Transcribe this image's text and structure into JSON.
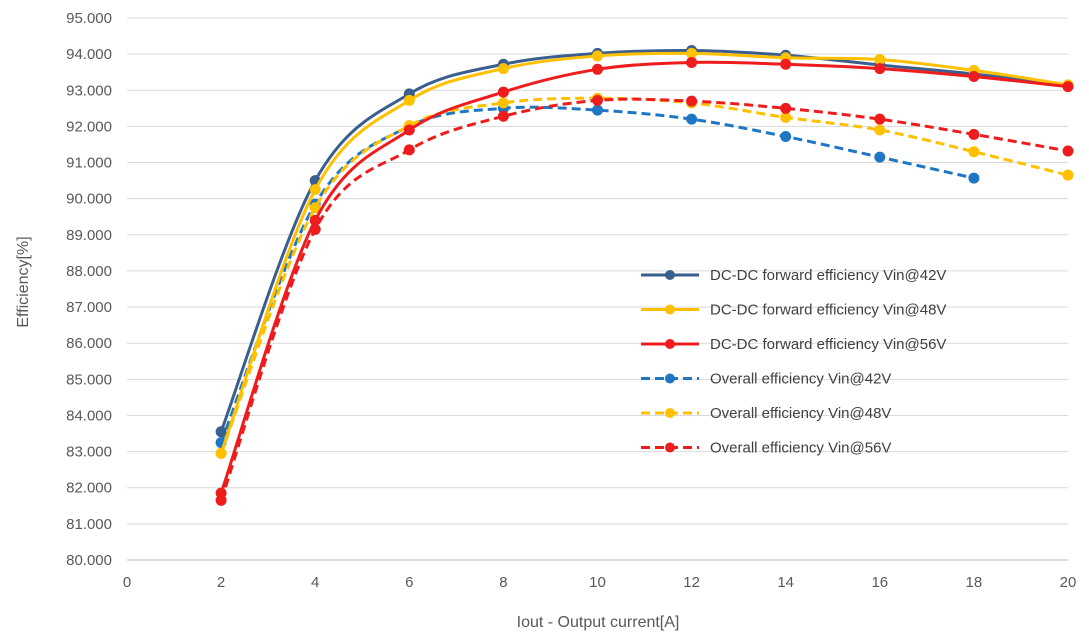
{
  "chart_data": {
    "type": "line",
    "title": "",
    "xlabel": "Iout - Output current[A]",
    "ylabel": "Efficiency[%]",
    "xlim": [
      0,
      20
    ],
    "ylim": [
      80,
      95
    ],
    "x_ticks": [
      "0",
      "2",
      "4",
      "6",
      "8",
      "10",
      "12",
      "14",
      "16",
      "18",
      "20"
    ],
    "y_ticks": [
      "80.000",
      "81.000",
      "82.000",
      "83.000",
      "84.000",
      "85.000",
      "86.000",
      "87.000",
      "88.000",
      "89.000",
      "90.000",
      "91.000",
      "92.000",
      "93.000",
      "94.000",
      "95.000"
    ],
    "grid": true,
    "legend_position": "right",
    "series": [
      {
        "name": "DC-DC forward efficiency Vin@42V",
        "color": "#3a5f8f",
        "dash": false,
        "x": [
          2,
          4,
          6,
          8,
          10,
          12,
          14,
          16,
          18,
          20
        ],
        "y": [
          83.55,
          90.5,
          92.9,
          93.72,
          94.02,
          94.1,
          93.97,
          93.7,
          93.45,
          93.12
        ]
      },
      {
        "name": "DC-DC forward efficiency Vin@48V",
        "color": "#ffc000",
        "dash": false,
        "x": [
          2,
          4,
          6,
          8,
          10,
          12,
          14,
          16,
          18,
          20
        ],
        "y": [
          82.95,
          90.25,
          92.72,
          93.6,
          93.95,
          94.02,
          93.9,
          93.85,
          93.55,
          93.15
        ]
      },
      {
        "name": "DC-DC forward efficiency Vin@56V",
        "color": "#ee1c1c",
        "dash": false,
        "x": [
          2,
          4,
          6,
          8,
          10,
          12,
          14,
          16,
          18,
          20
        ],
        "y": [
          81.85,
          89.4,
          91.9,
          92.95,
          93.58,
          93.77,
          93.72,
          93.6,
          93.38,
          93.1
        ]
      },
      {
        "name": "Overall efficiency Vin@42V",
        "color": "#1f77c4",
        "dash": true,
        "x": [
          2,
          4,
          6,
          8,
          10,
          12,
          14,
          16,
          18
        ],
        "y": [
          83.25,
          89.85,
          92.0,
          92.5,
          92.45,
          92.2,
          91.72,
          91.15,
          90.57
        ]
      },
      {
        "name": "Overall efficiency Vin@48V",
        "color": "#ffc000",
        "dash": true,
        "x": [
          2,
          4,
          6,
          8,
          10,
          12,
          14,
          16,
          18,
          20
        ],
        "y": [
          82.95,
          89.75,
          92.02,
          92.65,
          92.78,
          92.65,
          92.25,
          91.9,
          91.3,
          90.65
        ]
      },
      {
        "name": "Overall efficiency Vin@56V",
        "color": "#ee1c1c",
        "dash": true,
        "x": [
          2,
          4,
          6,
          8,
          10,
          12,
          14,
          16,
          18,
          20
        ],
        "y": [
          81.65,
          89.15,
          91.35,
          92.28,
          92.72,
          92.7,
          92.5,
          92.2,
          91.78,
          91.32
        ]
      }
    ]
  }
}
